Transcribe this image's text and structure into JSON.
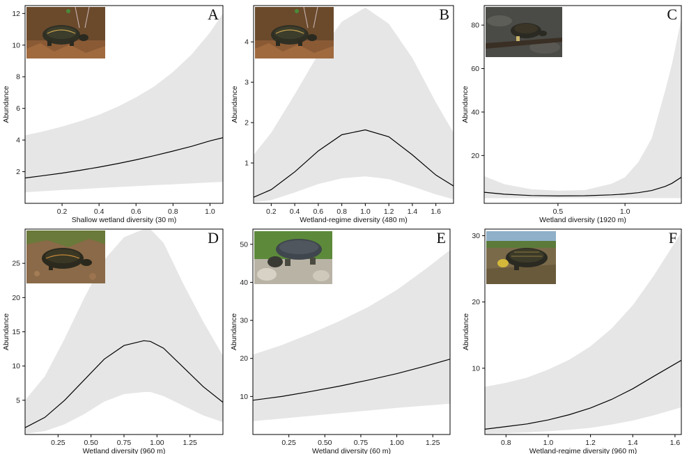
{
  "figure": {
    "ylabel": "Abundance",
    "band_color": "#e6e6e6",
    "line_color": "#000000"
  },
  "chart_data": [
    {
      "type": "line",
      "panel": "A",
      "xlabel": "Shallow wetland diversity (30 m)",
      "ylabel": "Abundance",
      "xlim": [
        0.0,
        1.07
      ],
      "ylim": [
        0.0,
        12.5
      ],
      "xticks": [
        0.2,
        0.4,
        0.6,
        0.8,
        1.0
      ],
      "xtick_labels": [
        "0.2",
        "0.4",
        "0.6",
        "0.8",
        "1.0"
      ],
      "yticks": [
        2,
        4,
        6,
        8,
        10,
        12
      ],
      "ytick_labels": [
        "2",
        "4",
        "6",
        "8",
        "10",
        "12"
      ],
      "image": "painted-turtle-photo",
      "x": [
        0.0,
        0.1,
        0.2,
        0.3,
        0.4,
        0.5,
        0.6,
        0.7,
        0.8,
        0.9,
        1.0,
        1.07
      ],
      "y": [
        1.6,
        1.75,
        1.91,
        2.09,
        2.29,
        2.51,
        2.75,
        3.02,
        3.3,
        3.6,
        3.95,
        4.15
      ],
      "lower": [
        0.7,
        0.77,
        0.84,
        0.9,
        0.97,
        1.03,
        1.09,
        1.15,
        1.2,
        1.26,
        1.32,
        1.35
      ],
      "upper": [
        4.3,
        4.55,
        4.85,
        5.2,
        5.6,
        6.1,
        6.7,
        7.4,
        8.3,
        9.4,
        10.8,
        12.0
      ]
    },
    {
      "type": "line",
      "panel": "B",
      "xlabel": "Wetland-regime diversity (480 m)",
      "ylabel": "Abundance",
      "xlim": [
        0.05,
        1.75
      ],
      "ylim": [
        0.0,
        4.9
      ],
      "xticks": [
        0.2,
        0.4,
        0.6,
        0.8,
        1.0,
        1.2,
        1.4,
        1.6
      ],
      "xtick_labels": [
        "0.2",
        "0.4",
        "0.6",
        "0.8",
        "1.0",
        "1.2",
        "1.4",
        "1.6"
      ],
      "yticks": [
        1,
        2,
        3,
        4
      ],
      "ytick_labels": [
        "1",
        "2",
        "3",
        "4"
      ],
      "image": "painted-turtle-photo",
      "x": [
        0.05,
        0.2,
        0.4,
        0.6,
        0.8,
        1.0,
        1.2,
        1.4,
        1.6,
        1.75
      ],
      "y": [
        0.15,
        0.34,
        0.78,
        1.3,
        1.7,
        1.82,
        1.65,
        1.2,
        0.7,
        0.43
      ],
      "lower": [
        0.02,
        0.08,
        0.27,
        0.48,
        0.62,
        0.67,
        0.6,
        0.42,
        0.22,
        0.1
      ],
      "upper": [
        1.2,
        1.75,
        2.7,
        3.7,
        4.5,
        4.85,
        4.45,
        3.6,
        2.5,
        1.75
      ]
    },
    {
      "type": "line",
      "panel": "C",
      "xlabel": "Wetland diversity (1920 m)",
      "ylabel": "Abundance",
      "xlim": [
        -0.05,
        1.42
      ],
      "ylim": [
        -2.0,
        89.0
      ],
      "xticks": [
        0.5,
        1.0
      ],
      "xtick_labels": [
        "0.5",
        "1.0"
      ],
      "yticks": [
        20,
        40,
        60,
        80
      ],
      "ytick_labels": [
        "20",
        "40",
        "60",
        "80"
      ],
      "image": "mud-turtle-photo",
      "x": [
        -0.05,
        0.1,
        0.3,
        0.5,
        0.7,
        0.9,
        1.0,
        1.1,
        1.2,
        1.3,
        1.35,
        1.42
      ],
      "y": [
        3.1,
        2.2,
        1.6,
        1.4,
        1.5,
        1.9,
        2.3,
        2.9,
        3.9,
        5.8,
        7.2,
        10.0
      ],
      "lower": [
        0.4,
        0.4,
        0.4,
        0.4,
        0.4,
        0.4,
        0.4,
        0.4,
        0.4,
        0.4,
        0.4,
        0.4
      ],
      "upper": [
        10.5,
        6.8,
        4.5,
        3.8,
        4.1,
        7.0,
        10.0,
        17.0,
        28.0,
        50.0,
        62.0,
        83.0
      ]
    },
    {
      "type": "line",
      "panel": "D",
      "xlabel": "Wetland diversity (960 m)",
      "ylabel": "Abundance",
      "xlim": [
        0.0,
        1.5
      ],
      "ylim": [
        0.0,
        30.0
      ],
      "xticks": [
        0.25,
        0.5,
        0.75,
        1.0,
        1.25
      ],
      "xtick_labels": [
        "0.25",
        "0.50",
        "0.75",
        "1.00",
        "1.25"
      ],
      "yticks": [
        5,
        10,
        15,
        20,
        25
      ],
      "ytick_labels": [
        "5",
        "10",
        "15",
        "20",
        "25"
      ],
      "image": "painted-turtle-photo-2",
      "x": [
        0.0,
        0.15,
        0.3,
        0.45,
        0.6,
        0.75,
        0.9,
        0.95,
        1.05,
        1.2,
        1.35,
        1.5
      ],
      "y": [
        1.0,
        2.5,
        5.0,
        8.0,
        11.0,
        13.0,
        13.7,
        13.6,
        12.6,
        9.8,
        7.0,
        4.7
      ],
      "lower": [
        0.1,
        0.5,
        1.5,
        3.0,
        4.8,
        5.9,
        6.2,
        6.2,
        5.6,
        4.2,
        2.8,
        1.8
      ],
      "upper": [
        5.0,
        8.5,
        14.0,
        20.0,
        25.5,
        28.8,
        30.0,
        30.0,
        28.0,
        22.0,
        16.5,
        11.5
      ]
    },
    {
      "type": "line",
      "panel": "E",
      "xlabel": "Wetland diversity (60 m)",
      "ylabel": "Abundance",
      "xlim": [
        0.0,
        1.37
      ],
      "ylim": [
        0.0,
        54.0
      ],
      "xticks": [
        0.25,
        0.5,
        0.75,
        1.0,
        1.25
      ],
      "xtick_labels": [
        "0.25",
        "0.50",
        "0.75",
        "1.00",
        "1.25"
      ],
      "yticks": [
        10,
        20,
        30,
        40,
        50
      ],
      "ytick_labels": [
        "10",
        "20",
        "30",
        "40",
        "50"
      ],
      "image": "snapping-turtle-photo",
      "x": [
        0.0,
        0.2,
        0.4,
        0.6,
        0.8,
        1.0,
        1.2,
        1.37
      ],
      "y": [
        9.0,
        10.0,
        11.3,
        12.7,
        14.3,
        16.0,
        18.0,
        19.8
      ],
      "lower": [
        3.5,
        4.2,
        4.9,
        5.6,
        6.3,
        7.0,
        7.6,
        8.1
      ],
      "upper": [
        21.0,
        23.5,
        26.5,
        29.8,
        33.5,
        38.0,
        43.5,
        48.5
      ]
    },
    {
      "type": "line",
      "panel": "F",
      "xlabel": "Wetland-regime diversity (960 m)",
      "ylabel": "Abundance",
      "xlim": [
        0.7,
        1.63
      ],
      "ylim": [
        0.0,
        31.0
      ],
      "xticks": [
        0.8,
        1.0,
        1.2,
        1.4,
        1.6
      ],
      "xtick_labels": [
        "0.8",
        "1.0",
        "1.2",
        "1.4",
        "1.6"
      ],
      "yticks": [
        10,
        20,
        30
      ],
      "ytick_labels": [
        "10",
        "20",
        "30"
      ],
      "image": "blandings-turtle-photo",
      "x": [
        0.7,
        0.8,
        0.9,
        1.0,
        1.1,
        1.2,
        1.3,
        1.4,
        1.5,
        1.63
      ],
      "y": [
        0.8,
        1.2,
        1.6,
        2.2,
        3.0,
        4.0,
        5.3,
        6.9,
        8.8,
        11.2
      ],
      "lower": [
        0.1,
        0.2,
        0.3,
        0.5,
        0.7,
        1.0,
        1.5,
        2.1,
        2.9,
        4.1
      ],
      "upper": [
        7.2,
        7.8,
        8.6,
        9.8,
        11.3,
        13.3,
        16.0,
        19.5,
        24.0,
        30.5
      ]
    }
  ]
}
